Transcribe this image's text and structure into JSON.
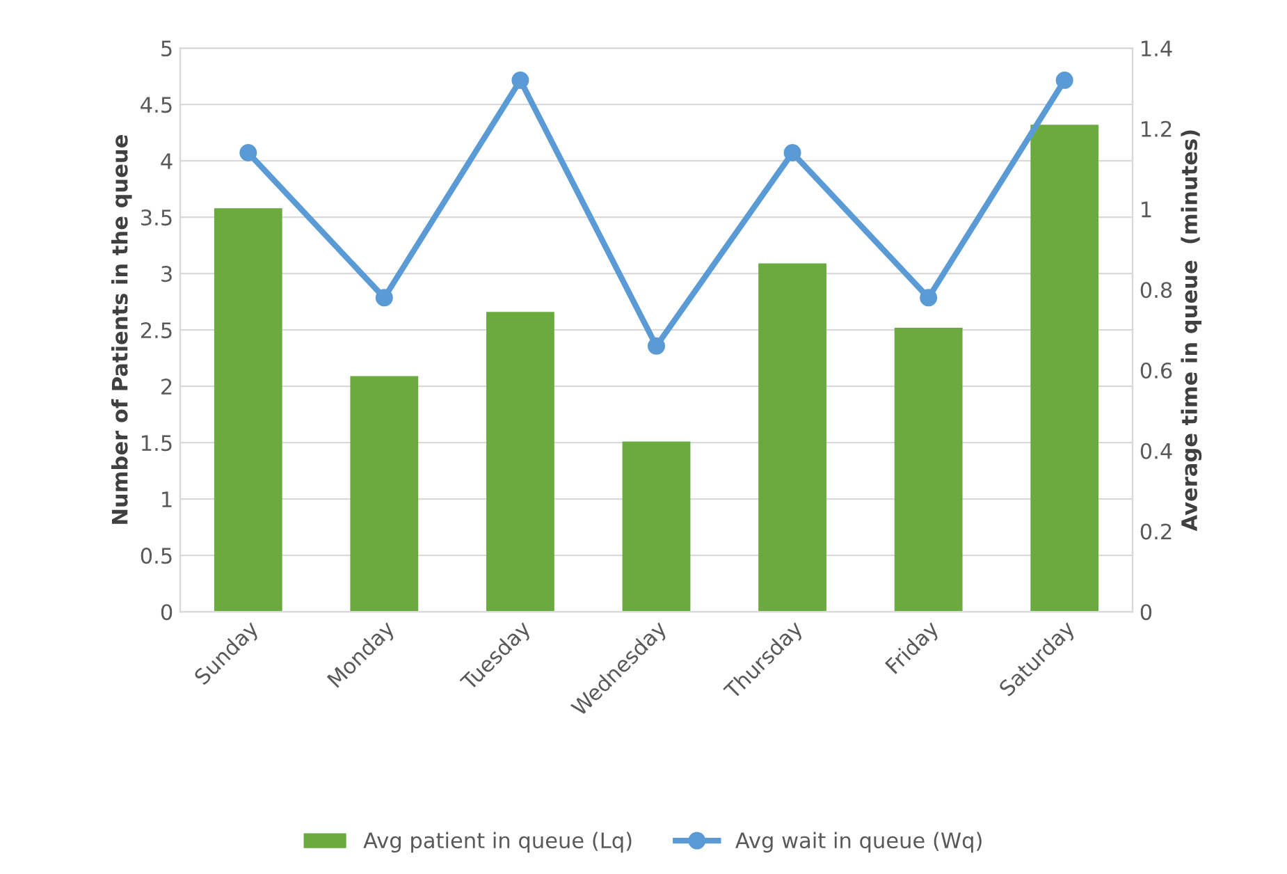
{
  "chart_data": {
    "type": "bar",
    "categories": [
      "Sunday",
      "Monday",
      "Tuesday",
      "Wednesday",
      "Thursday",
      "Friday",
      "Saturday"
    ],
    "series": [
      {
        "name": "Avg patient in queue (Lq)",
        "color": "#6aaa3f",
        "values": [
          3.58,
          2.09,
          2.66,
          1.51,
          3.09,
          2.52,
          4.32
        ]
      },
      {
        "name": "Avg wait in queue (Wq)",
        "type": "line",
        "axis": "y2",
        "color": "#5b9bd5",
        "marker": "circle",
        "values": [
          1.14,
          0.78,
          1.32,
          0.66,
          1.14,
          0.78,
          1.32
        ]
      }
    ],
    "ylabel": "Number of Patients in the queue",
    "y2label": "Average time in queue  (minutes)",
    "ylim": [
      0,
      5
    ],
    "yticks": [
      0,
      0.5,
      1,
      1.5,
      2,
      2.5,
      3,
      3.5,
      4,
      4.5,
      5
    ],
    "y2lim": [
      0,
      1.4
    ],
    "y2ticks": [
      0,
      0.2,
      0.4,
      0.6,
      0.8,
      1,
      1.2,
      1.4
    ],
    "grid": "y",
    "legend": "bottom"
  }
}
